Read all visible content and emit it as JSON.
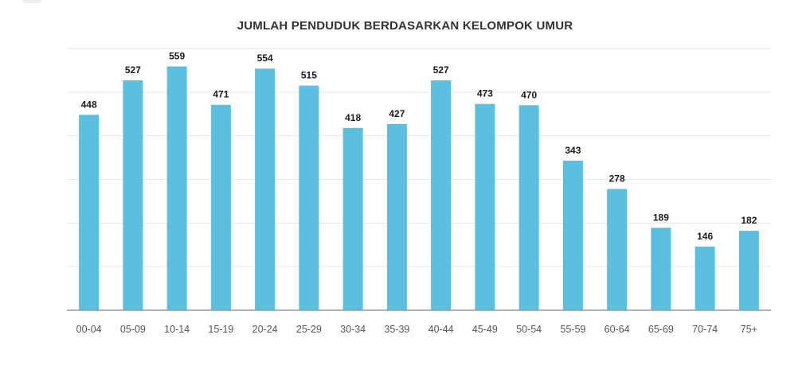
{
  "chart_data": {
    "type": "bar",
    "title": "JUMLAH PENDUDUK BERDASARKAN KELOMPOK UMUR",
    "categories": [
      "00-04",
      "05-09",
      "10-14",
      "15-19",
      "20-24",
      "25-29",
      "30-34",
      "35-39",
      "40-44",
      "45-49",
      "50-54",
      "55-59",
      "60-64",
      "65-69",
      "70-74",
      "75+"
    ],
    "values": [
      448,
      527,
      559,
      471,
      554,
      515,
      418,
      427,
      527,
      473,
      470,
      343,
      278,
      189,
      146,
      182
    ],
    "xlabel": "",
    "ylabel": "",
    "ylim": [
      0,
      600
    ],
    "y_tick_labels_shown": false,
    "grid": true,
    "legend": "none",
    "colors": {
      "bar": "#5bbfdf",
      "grid": "#e6e6e6",
      "axis": "#999999"
    }
  }
}
